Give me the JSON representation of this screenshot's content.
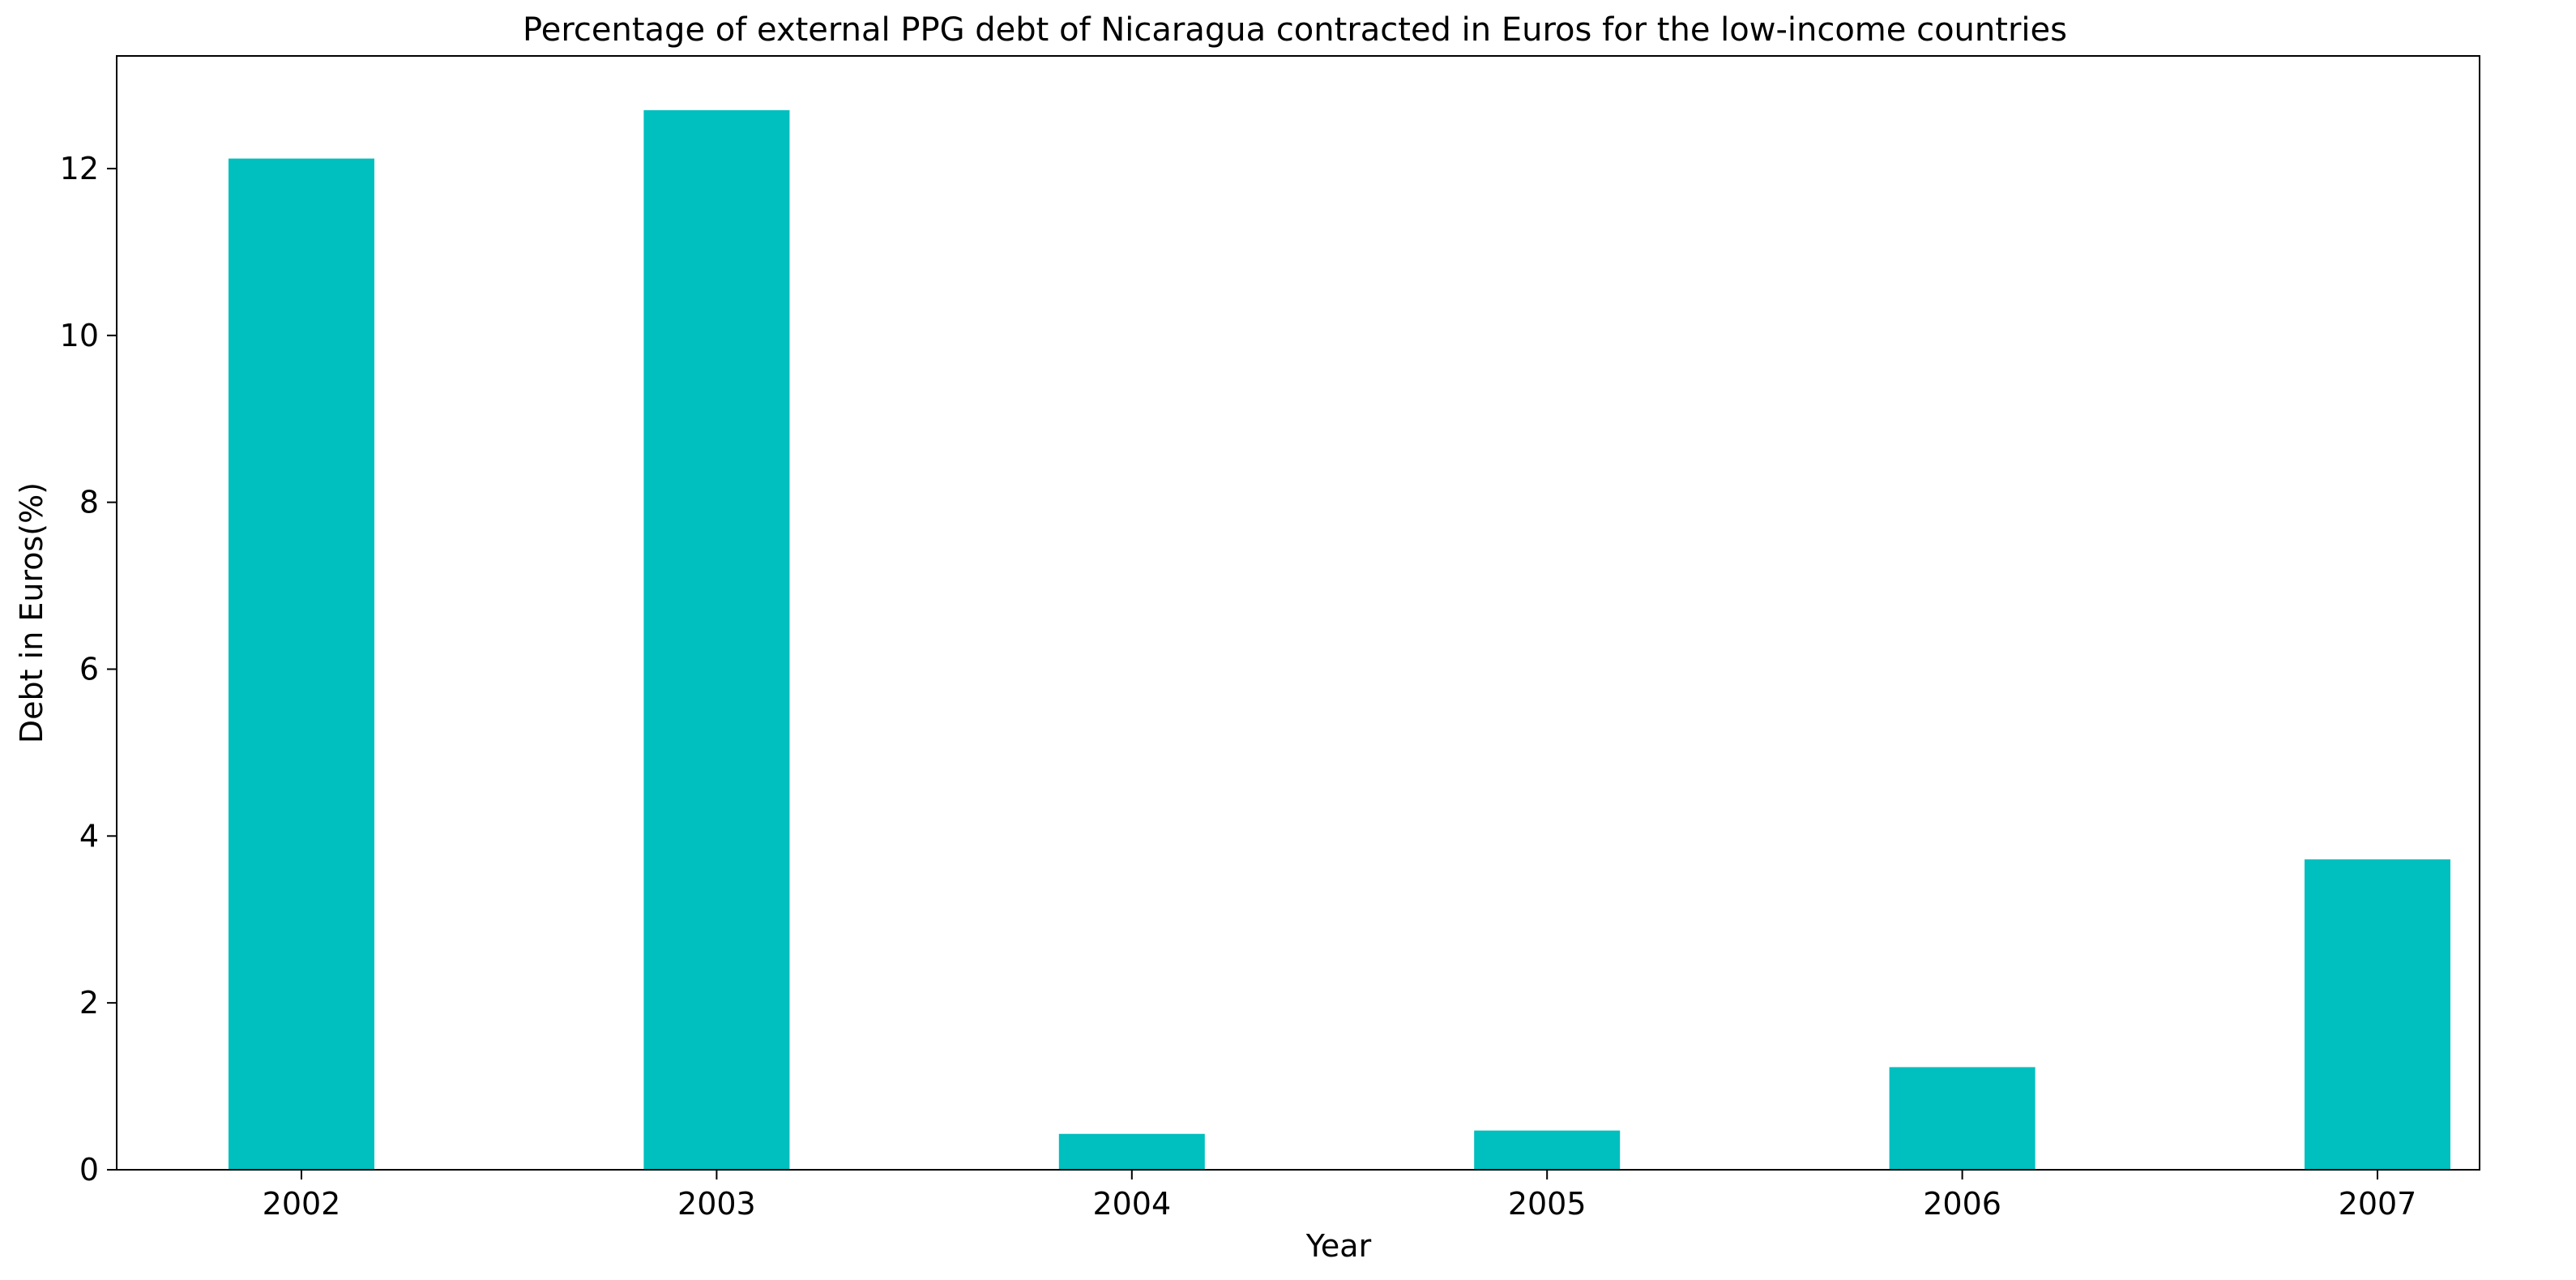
{
  "chart_data": {
    "type": "bar",
    "title": "Percentage of external PPG debt of Nicaragua contracted in Euros for the low-income countries",
    "xlabel": "Year",
    "ylabel": "Debt in Euros(%)",
    "categories": [
      "2002",
      "2003",
      "2004",
      "2005",
      "2006",
      "2007"
    ],
    "values": [
      12.12,
      12.7,
      0.43,
      0.47,
      1.23,
      3.72
    ],
    "ylim": [
      0,
      13.35
    ],
    "yticks": [
      0,
      2,
      4,
      6,
      8,
      10,
      12
    ],
    "bar_color": "#00bfbf",
    "grid": false,
    "legend": false
  }
}
